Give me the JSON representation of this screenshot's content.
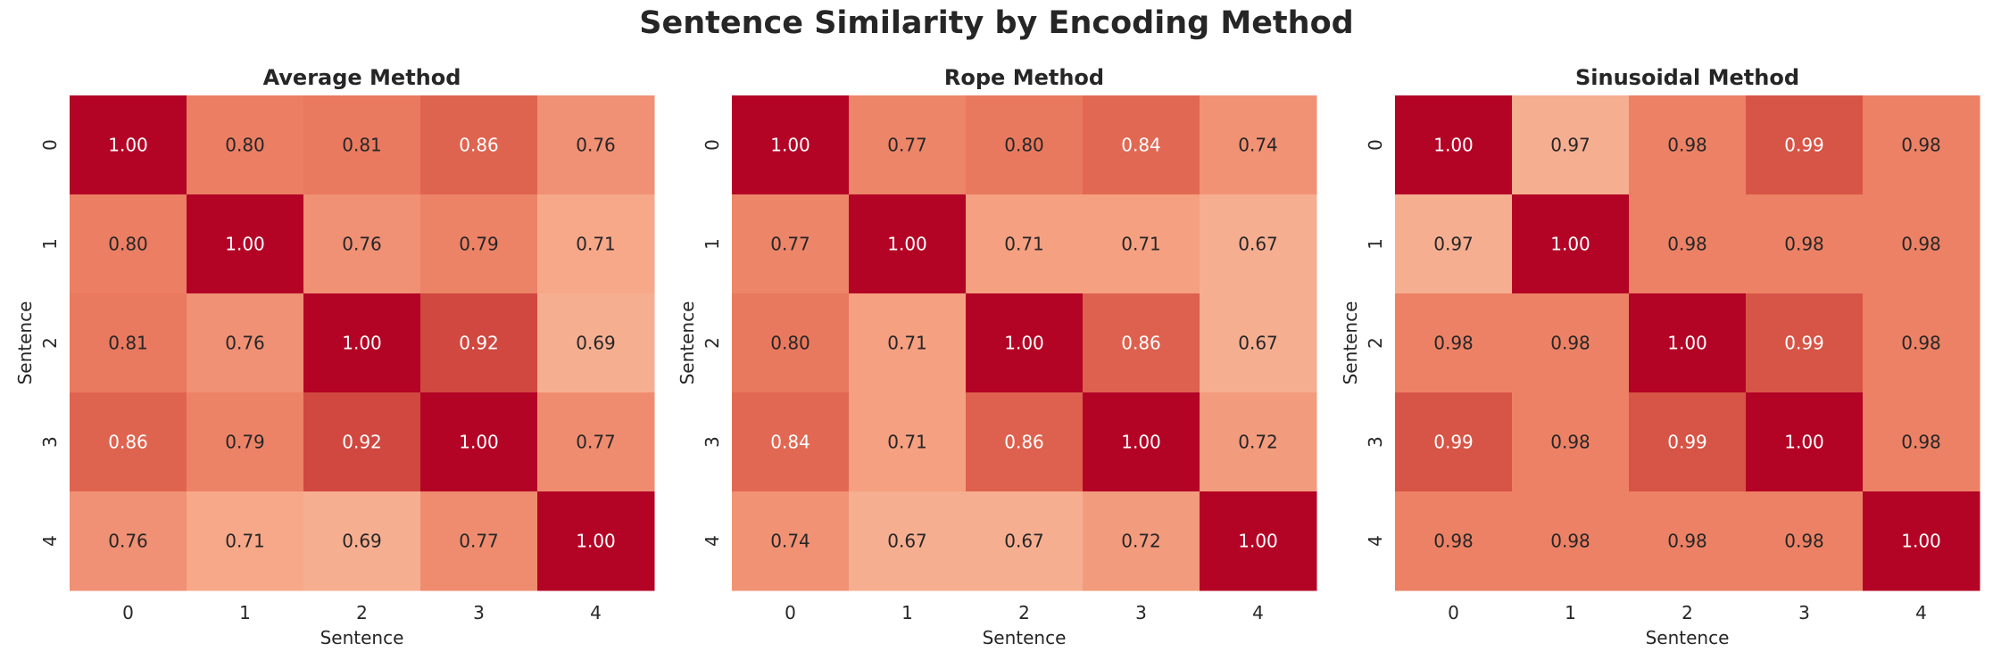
{
  "title": "Sentence Similarity by Encoding Method",
  "chart_data": [
    {
      "type": "heatmap",
      "title": "Average Method",
      "xlabel": "Sentence",
      "ylabel": "Sentence",
      "x_ticks": [
        "0",
        "1",
        "2",
        "3",
        "4"
      ],
      "y_ticks": [
        "0",
        "1",
        "2",
        "3",
        "4"
      ],
      "values": [
        [
          1.0,
          0.8,
          0.81,
          0.86,
          0.76
        ],
        [
          0.8,
          1.0,
          0.76,
          0.79,
          0.71
        ],
        [
          0.81,
          0.76,
          1.0,
          0.92,
          0.69
        ],
        [
          0.86,
          0.79,
          0.92,
          1.0,
          0.77
        ],
        [
          0.76,
          0.71,
          0.69,
          0.77,
          1.0
        ]
      ],
      "labels": [
        [
          "1.00",
          "0.80",
          "0.81",
          "0.86",
          "0.76"
        ],
        [
          "0.80",
          "1.00",
          "0.76",
          "0.79",
          "0.71"
        ],
        [
          "0.81",
          "0.76",
          "1.00",
          "0.92",
          "0.69"
        ],
        [
          "0.86",
          "0.79",
          "0.92",
          "1.00",
          "0.77"
        ],
        [
          "0.76",
          "0.71",
          "0.69",
          "0.77",
          "1.00"
        ]
      ],
      "colormap": "coolwarm",
      "colorbar": false
    },
    {
      "type": "heatmap",
      "title": "Rope Method",
      "xlabel": "Sentence",
      "ylabel": "Sentence",
      "x_ticks": [
        "0",
        "1",
        "2",
        "3",
        "4"
      ],
      "y_ticks": [
        "0",
        "1",
        "2",
        "3",
        "4"
      ],
      "values": [
        [
          1.0,
          0.77,
          0.8,
          0.84,
          0.74
        ],
        [
          0.77,
          1.0,
          0.71,
          0.71,
          0.67
        ],
        [
          0.8,
          0.71,
          1.0,
          0.86,
          0.67
        ],
        [
          0.84,
          0.71,
          0.86,
          1.0,
          0.72
        ],
        [
          0.74,
          0.67,
          0.67,
          0.72,
          1.0
        ]
      ],
      "labels": [
        [
          "1.00",
          "0.77",
          "0.80",
          "0.84",
          "0.74"
        ],
        [
          "0.77",
          "1.00",
          "0.71",
          "0.71",
          "0.67"
        ],
        [
          "0.80",
          "0.71",
          "1.00",
          "0.86",
          "0.67"
        ],
        [
          "0.84",
          "0.71",
          "0.86",
          "1.00",
          "0.72"
        ],
        [
          "0.74",
          "0.67",
          "0.67",
          "0.72",
          "1.00"
        ]
      ],
      "colormap": "coolwarm",
      "colorbar": false
    },
    {
      "type": "heatmap",
      "title": "Sinusoidal Method",
      "xlabel": "Sentence",
      "ylabel": "Sentence",
      "x_ticks": [
        "0",
        "1",
        "2",
        "3",
        "4"
      ],
      "y_ticks": [
        "0",
        "1",
        "2",
        "3",
        "4"
      ],
      "values": [
        [
          1.0,
          0.97,
          0.98,
          0.99,
          0.98
        ],
        [
          0.97,
          1.0,
          0.98,
          0.98,
          0.98
        ],
        [
          0.98,
          0.98,
          1.0,
          0.99,
          0.98
        ],
        [
          0.99,
          0.98,
          0.99,
          1.0,
          0.98
        ],
        [
          0.98,
          0.98,
          0.98,
          0.98,
          1.0
        ]
      ],
      "labels": [
        [
          "1.00",
          "0.97",
          "0.98",
          "0.99",
          "0.98"
        ],
        [
          "0.97",
          "1.00",
          "0.98",
          "0.98",
          "0.98"
        ],
        [
          "0.98",
          "0.98",
          "1.00",
          "0.99",
          "0.98"
        ],
        [
          "0.99",
          "0.98",
          "0.99",
          "1.00",
          "0.98"
        ],
        [
          "0.98",
          "0.98",
          "0.98",
          "0.98",
          "1.00"
        ]
      ],
      "colormap": "coolwarm",
      "colorbar": false
    }
  ]
}
